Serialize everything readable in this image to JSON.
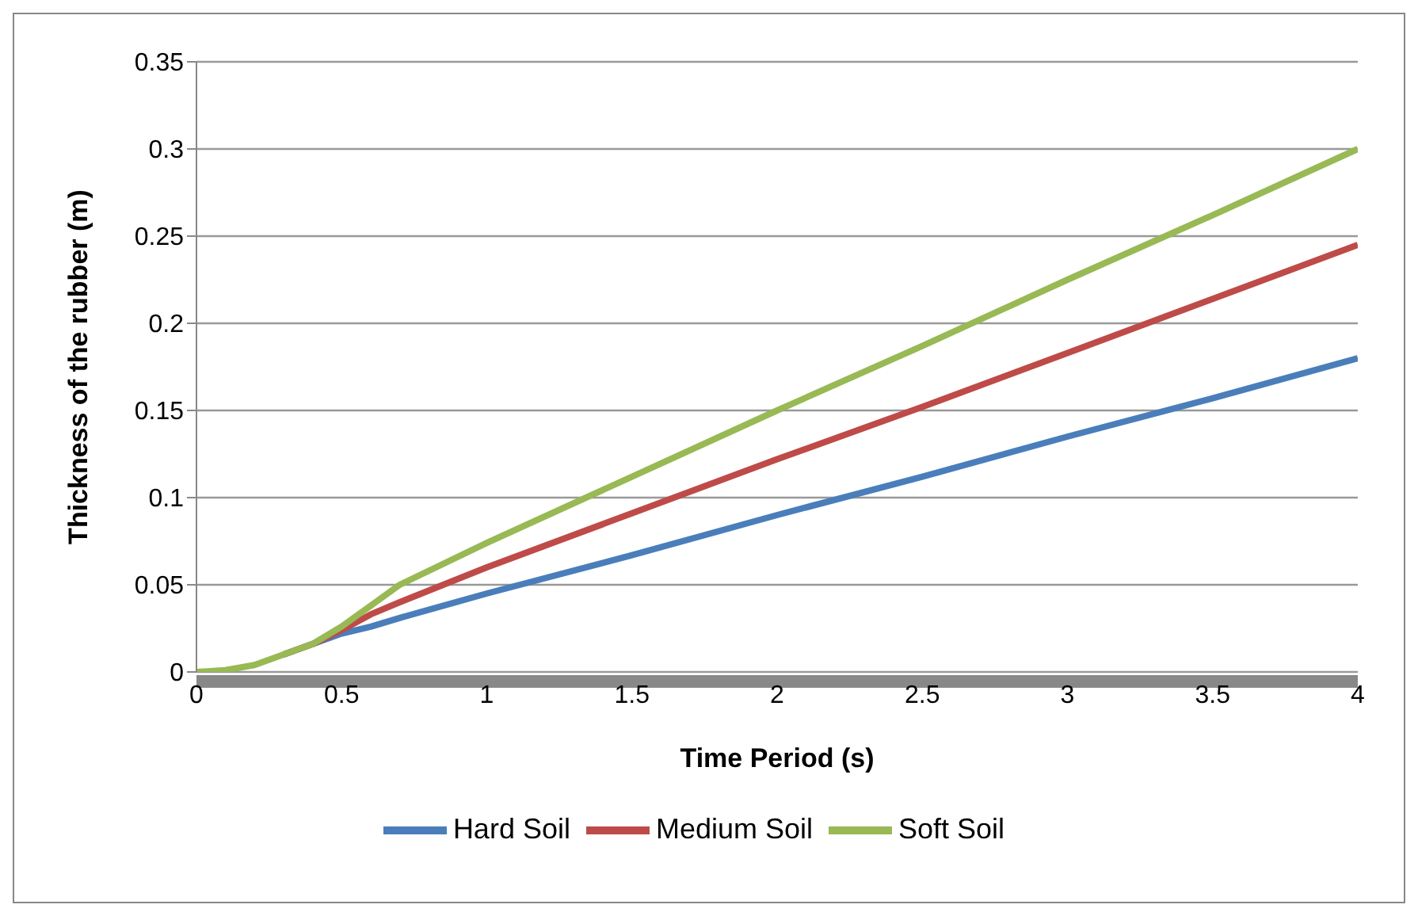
{
  "chart_data": {
    "type": "line",
    "xlabel": "Time Period (s)",
    "ylabel": "Thickness  of the rubber (m)",
    "x": [
      0,
      0.1,
      0.2,
      0.3,
      0.4,
      0.5,
      0.6,
      0.7,
      1,
      1.5,
      2,
      2.5,
      3,
      3.5,
      4
    ],
    "series": [
      {
        "name": "Hard Soil",
        "color": "#4a7ebb",
        "values": [
          null,
          null,
          null,
          0.01,
          0.016,
          0.022,
          0.026,
          0.031,
          0.045,
          0.067,
          0.09,
          0.112,
          0.135,
          0.157,
          0.18
        ]
      },
      {
        "name": "Medium Soil",
        "color": "#be4b48",
        "values": [
          null,
          null,
          null,
          0.01,
          0.016,
          0.024,
          0.033,
          0.04,
          0.06,
          0.091,
          0.122,
          0.152,
          0.183,
          0.214,
          0.245
        ]
      },
      {
        "name": "Soft Soil",
        "color": "#98b954",
        "values": [
          0,
          0.001,
          0.004,
          0.01,
          0.016,
          0.026,
          0.038,
          0.05,
          0.074,
          0.112,
          0.15,
          0.187,
          0.225,
          0.262,
          0.3
        ]
      }
    ],
    "xlim": [
      0,
      4
    ],
    "xticks": [
      0,
      0.5,
      1,
      1.5,
      2,
      2.5,
      3,
      3.5,
      4
    ],
    "ylim": [
      0,
      0.35
    ],
    "yticks": [
      0,
      0.05,
      0.1,
      0.15,
      0.2,
      0.25,
      0.3,
      0.35
    ],
    "grid": "y",
    "legend": "bottom",
    "marker": "none",
    "line_style": "solid"
  }
}
